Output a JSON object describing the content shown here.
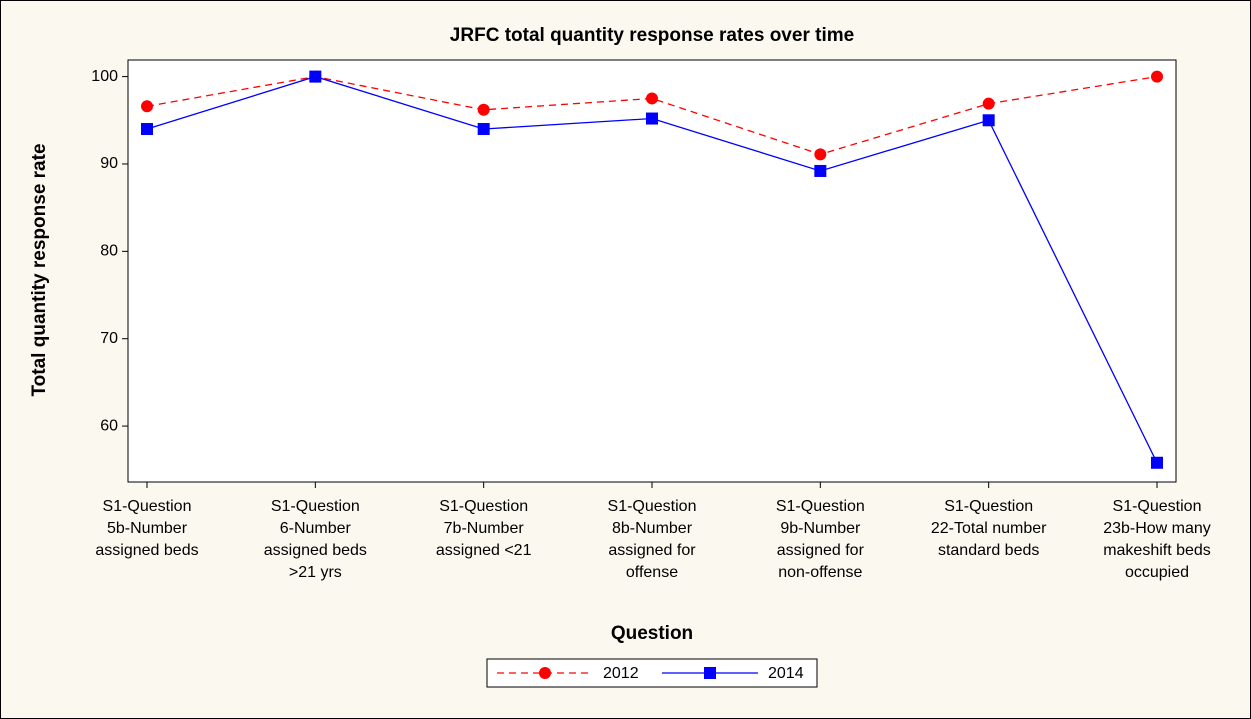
{
  "chart_data": {
    "type": "line",
    "title": "JRFC total quantity response rates over time",
    "x_label": "Question",
    "y_label": "Total quantity response rate",
    "categories": [
      [
        "S1-Question",
        "5b-Number",
        "assigned beds"
      ],
      [
        "S1-Question",
        "6-Number",
        "assigned beds",
        ">21 yrs"
      ],
      [
        "S1-Question",
        "7b-Number",
        "assigned <21"
      ],
      [
        "S1-Question",
        "8b-Number",
        "assigned for",
        "offense"
      ],
      [
        "S1-Question",
        "9b-Number",
        "assigned for",
        "non-offense"
      ],
      [
        "S1-Question",
        "22-Total number",
        "standard beds"
      ],
      [
        "S1-Question",
        "23b-How many",
        "makeshift beds",
        "occupied"
      ]
    ],
    "series": [
      {
        "name": "2012",
        "color": "#ff0000",
        "marker": "circle",
        "dash": true,
        "values": [
          96.6,
          100,
          96.2,
          97.5,
          91.1,
          96.9,
          100
        ]
      },
      {
        "name": "2014",
        "color": "#0000ff",
        "marker": "square",
        "dash": false,
        "values": [
          94.0,
          100,
          94.0,
          95.2,
          89.2,
          95.0,
          55.8
        ]
      }
    ],
    "ylim": [
      53.6,
      101.9
    ],
    "yticks": [
      60,
      70,
      80,
      90,
      100
    ],
    "legend": "bottom"
  }
}
